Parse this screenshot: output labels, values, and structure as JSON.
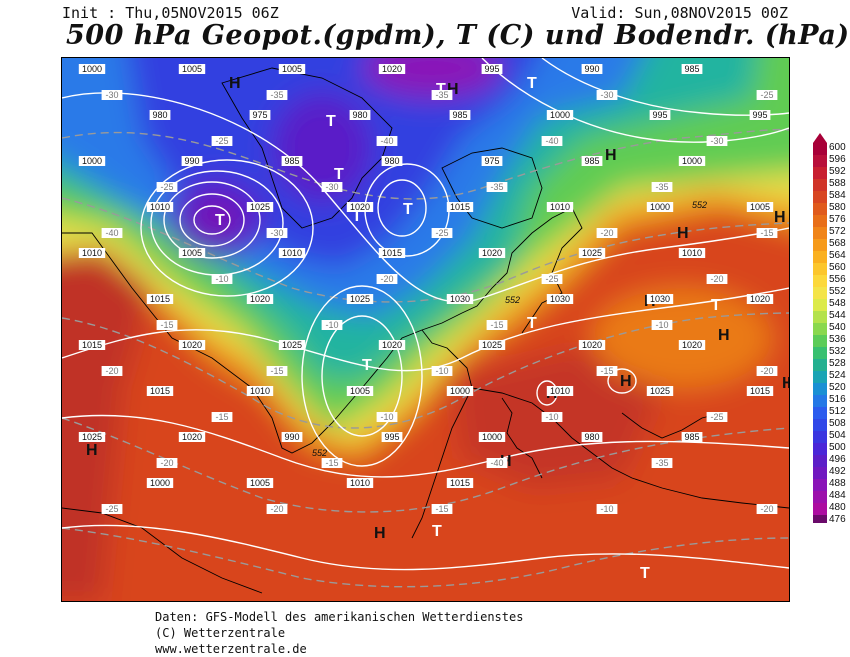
{
  "header": {
    "init": "Init : Thu,05NOV2015 06Z",
    "valid": "Valid: Sun,08NOV2015 00Z",
    "title": "500 hPa Geopot.(gpdm), T (C) und Bodendr. (hPa)"
  },
  "colors": {
    "ocean_bg": "#c03a2a",
    "land_line": "#000000",
    "isobar": "#ffffff",
    "isotherm": "#b0b0b0"
  },
  "scale": {
    "values": [
      "600",
      "596",
      "592",
      "588",
      "584",
      "580",
      "576",
      "572",
      "568",
      "564",
      "560",
      "556",
      "552",
      "548",
      "544",
      "540",
      "536",
      "532",
      "528",
      "524",
      "520",
      "516",
      "512",
      "508",
      "504",
      "500",
      "496",
      "492",
      "488",
      "484",
      "480",
      "476"
    ],
    "colors": [
      "#a80038",
      "#b80f3a",
      "#c81f30",
      "#d03428",
      "#d84622",
      "#e05a1c",
      "#e86e18",
      "#f08418",
      "#f69a1a",
      "#fab020",
      "#fcc62c",
      "#fcd83a",
      "#f4e448",
      "#dcea4a",
      "#b4e24c",
      "#8ad84e",
      "#5ccc58",
      "#38c070",
      "#24b090",
      "#1aa4b4",
      "#1a90d4",
      "#2478e6",
      "#2c5cee",
      "#3048e8",
      "#3a36e0",
      "#4a26d8",
      "#5c1ec8",
      "#7018c0",
      "#8a14b8",
      "#9c10ac",
      "#ac0ca0",
      "#6a0a6a"
    ]
  },
  "pressure_centers": [
    {
      "label": "H",
      "kind": "high"
    },
    {
      "label": "H",
      "kind": "high"
    },
    {
      "label": "H",
      "kind": "high"
    },
    {
      "label": "H",
      "kind": "high"
    },
    {
      "label": "H",
      "kind": "high"
    },
    {
      "label": "H",
      "kind": "high"
    },
    {
      "label": "H",
      "kind": "high"
    },
    {
      "label": "H",
      "kind": "high"
    },
    {
      "label": "H",
      "kind": "high"
    },
    {
      "label": "H",
      "kind": "high"
    },
    {
      "label": "H",
      "kind": "high"
    },
    {
      "label": "H",
      "kind": "high"
    },
    {
      "label": "H",
      "kind": "high"
    },
    {
      "label": "H",
      "kind": "high"
    },
    {
      "label": "T",
      "kind": "low"
    },
    {
      "label": "T",
      "kind": "low"
    },
    {
      "label": "T",
      "kind": "low"
    },
    {
      "label": "T",
      "kind": "low"
    },
    {
      "label": "T",
      "kind": "low"
    },
    {
      "label": "T",
      "kind": "low"
    },
    {
      "label": "T",
      "kind": "low"
    },
    {
      "label": "T",
      "kind": "low"
    },
    {
      "label": "T",
      "kind": "low"
    },
    {
      "label": "T",
      "kind": "low"
    },
    {
      "label": "T",
      "kind": "low"
    },
    {
      "label": "T",
      "kind": "low"
    }
  ],
  "isobar_labels": [
    "1000",
    "1005",
    "1005",
    "1020",
    "995",
    "990",
    "985",
    "980",
    "975",
    "980",
    "985",
    "1000",
    "995",
    "995",
    "1000",
    "990",
    "985",
    "980",
    "975",
    "985",
    "1000",
    "1010",
    "1025",
    "1020",
    "1015",
    "1010",
    "1000",
    "1005",
    "1010",
    "1005",
    "1010",
    "1015",
    "1020",
    "1025",
    "1010",
    "1015",
    "1020",
    "1025",
    "1030",
    "1030",
    "1030",
    "1020",
    "1015",
    "1020",
    "1025",
    "1020",
    "1025",
    "1020",
    "1020",
    "1015",
    "1010",
    "1005",
    "1000",
    "1010",
    "1025",
    "1015",
    "1025",
    "1020",
    "990",
    "995",
    "1000",
    "980",
    "985",
    "1000",
    "1005",
    "1010",
    "1015"
  ],
  "isotherm_labels": [
    "-30",
    "-35",
    "-35",
    "-30",
    "-25",
    "-25",
    "-40",
    "-40",
    "-30",
    "-25",
    "-30",
    "-35",
    "-35",
    "-40",
    "-30",
    "-25",
    "-20",
    "-15",
    "-10",
    "-20",
    "-25",
    "-20",
    "-15",
    "-10",
    "-15",
    "-10",
    "-20",
    "-15",
    "-10",
    "-15",
    "-20",
    "-15",
    "-10",
    "-10",
    "-25",
    "-20",
    "-15",
    "-40",
    "-35",
    "-25",
    "-20",
    "-15",
    "-10",
    "-20"
  ],
  "contour_552": [
    "552",
    "552",
    "552"
  ],
  "footer": {
    "line1": "Daten: GFS-Modell des amerikanischen Wetterdienstes",
    "line2": "(C) Wetterzentrale",
    "line3": "www.wetterzentrale.de"
  }
}
